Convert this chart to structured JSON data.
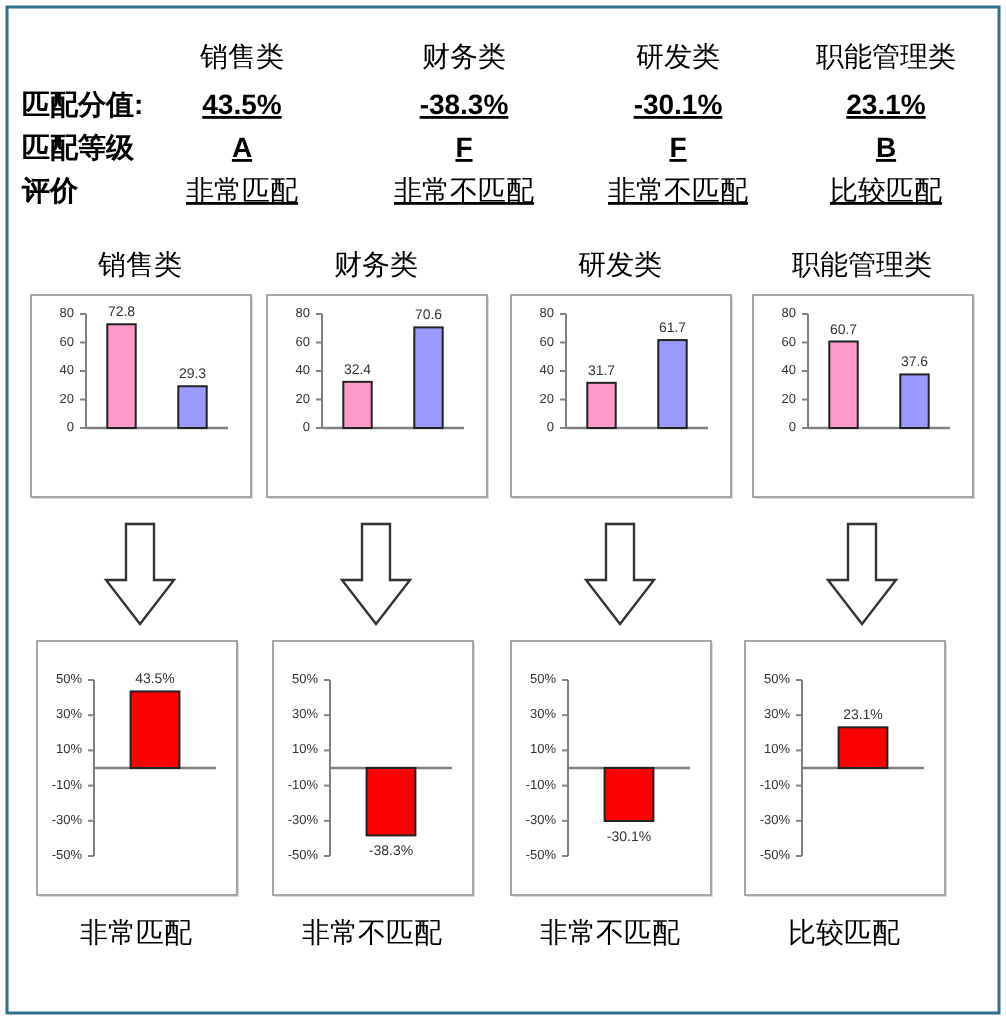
{
  "chart_data": [
    {
      "type": "other",
      "categories": [
        "销售类",
        "财务类",
        "研发类",
        "职能管理类"
      ],
      "y_categories": [
        "匹配分值:",
        "匹配等级",
        "评价"
      ],
      "cell_labels": [
        [
          "43.5%",
          "-38.3%",
          "-30.1%",
          "23.1%"
        ],
        [
          "A",
          "F",
          "F",
          "B"
        ],
        [
          "非常匹配",
          "非常不匹配",
          "非常不匹配",
          "比较匹配"
        ]
      ]
    },
    {
      "type": "bar",
      "title": "销售类",
      "categories": [
        null,
        null
      ],
      "values": [
        72.8,
        29.3
      ],
      "colors": [
        "#ff99cc",
        "#9999ff"
      ],
      "ylim": [
        0,
        80
      ],
      "yticks": [
        0,
        20,
        40,
        60,
        80
      ],
      "data_labels": true
    },
    {
      "type": "bar",
      "title": "财务类",
      "categories": [
        null,
        null
      ],
      "values": [
        32.4,
        70.6
      ],
      "colors": [
        "#ff99cc",
        "#9999ff"
      ],
      "ylim": [
        0,
        80
      ],
      "yticks": [
        0,
        20,
        40,
        60,
        80
      ],
      "data_labels": true
    },
    {
      "type": "bar",
      "title": "研发类",
      "categories": [
        null,
        null
      ],
      "values": [
        31.7,
        61.7
      ],
      "colors": [
        "#ff99cc",
        "#9999ff"
      ],
      "ylim": [
        0,
        80
      ],
      "yticks": [
        0,
        20,
        40,
        60,
        80
      ],
      "data_labels": true
    },
    {
      "type": "bar",
      "title": "职能管理类",
      "categories": [
        null,
        null
      ],
      "values": [
        60.7,
        37.6
      ],
      "colors": [
        "#ff99cc",
        "#9999ff"
      ],
      "ylim": [
        0,
        80
      ],
      "yticks": [
        0,
        20,
        40,
        60,
        80
      ],
      "data_labels": true
    },
    {
      "type": "bar",
      "categories": [
        null
      ],
      "values": [
        43.5
      ],
      "colors": [
        "#ff0000"
      ],
      "ylim": [
        -50,
        50
      ],
      "yticks": [
        {
          "value": -50,
          "label": "-50%"
        },
        {
          "value": -30,
          "label": "-30%"
        },
        {
          "value": -10,
          "label": "-10%"
        },
        {
          "value": 10,
          "label": "10%"
        },
        {
          "value": 30,
          "label": "30%"
        },
        {
          "value": 50,
          "label": "50%"
        }
      ],
      "value_labels": [
        "43.5%"
      ],
      "annotations": [
        "非常匹配"
      ]
    },
    {
      "type": "bar",
      "categories": [
        null
      ],
      "values": [
        -38.3
      ],
      "colors": [
        "#ff0000"
      ],
      "ylim": [
        -50,
        50
      ],
      "yticks": [
        {
          "value": -50,
          "label": "-50%"
        },
        {
          "value": -30,
          "label": "-30%"
        },
        {
          "value": -10,
          "label": "-10%"
        },
        {
          "value": 10,
          "label": "10%"
        },
        {
          "value": 30,
          "label": "30%"
        },
        {
          "value": 50,
          "label": "50%"
        }
      ],
      "value_labels": [
        "-38.3%"
      ],
      "annotations": [
        "非常不匹配"
      ]
    },
    {
      "type": "bar",
      "categories": [
        null
      ],
      "values": [
        -30.1
      ],
      "colors": [
        "#ff0000"
      ],
      "ylim": [
        -50,
        50
      ],
      "yticks": [
        {
          "value": -50,
          "label": "-50%"
        },
        {
          "value": -30,
          "label": "-30%"
        },
        {
          "value": -10,
          "label": "-10%"
        },
        {
          "value": 10,
          "label": "10%"
        },
        {
          "value": 30,
          "label": "30%"
        },
        {
          "value": 50,
          "label": "50%"
        }
      ],
      "value_labels": [
        "-30.1%"
      ],
      "annotations": [
        "非常不匹配"
      ]
    },
    {
      "type": "bar",
      "categories": [
        null
      ],
      "values": [
        23.1
      ],
      "colors": [
        "#ff0000"
      ],
      "ylim": [
        -50,
        50
      ],
      "yticks": [
        {
          "value": -50,
          "label": "-50%"
        },
        {
          "value": -30,
          "label": "-30%"
        },
        {
          "value": -10,
          "label": "-10%"
        },
        {
          "value": 10,
          "label": "10%"
        },
        {
          "value": 30,
          "label": "30%"
        },
        {
          "value": 50,
          "label": "50%"
        }
      ],
      "value_labels": [
        "23.1%"
      ],
      "annotations": [
        "比较匹配"
      ]
    }
  ]
}
